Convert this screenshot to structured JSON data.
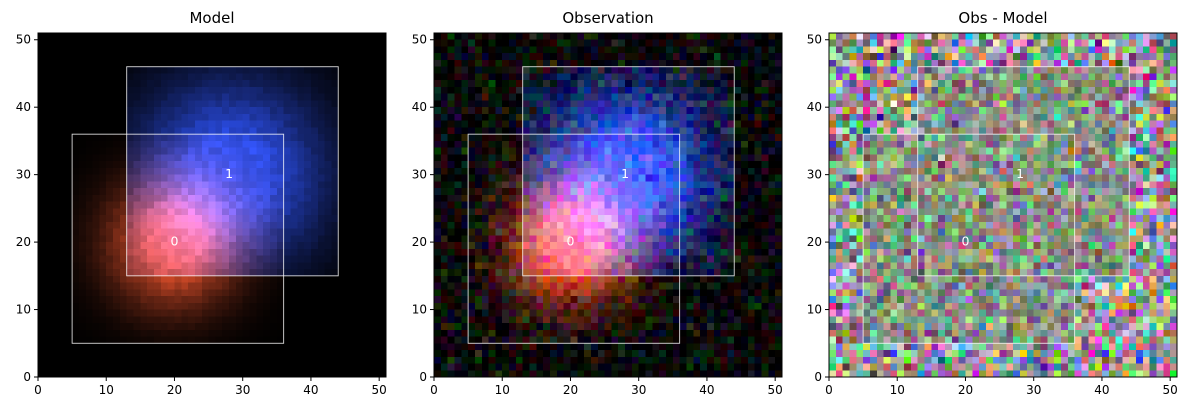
{
  "figure": {
    "background": "#ffffff",
    "box_color": "#ffffff"
  },
  "chart_data": [
    {
      "type": "heatmap",
      "title": "Model",
      "xlabel": "",
      "ylabel": "",
      "xlim": [
        0,
        51
      ],
      "ylim": [
        0,
        51
      ],
      "xticks": [
        0,
        10,
        20,
        30,
        40,
        50
      ],
      "yticks": [
        0,
        10,
        20,
        30,
        40,
        50
      ],
      "grid": false,
      "content": "model",
      "sources": [
        {
          "label": "0",
          "center": [
            20,
            20
          ],
          "box": {
            "x0": 5,
            "y0": 5,
            "x1": 36,
            "y1": 36
          },
          "color": "#ff5a30"
        },
        {
          "label": "1",
          "center": [
            28,
            30
          ],
          "box": {
            "x0": 13,
            "y0": 15,
            "x1": 44,
            "y1": 46
          },
          "color": "#2f55ff"
        }
      ]
    },
    {
      "type": "heatmap",
      "title": "Observation",
      "xlabel": "",
      "ylabel": "",
      "xlim": [
        0,
        51
      ],
      "ylim": [
        0,
        51
      ],
      "xticks": [
        0,
        10,
        20,
        30,
        40,
        50
      ],
      "yticks": [
        0,
        10,
        20,
        30,
        40,
        50
      ],
      "grid": false,
      "content": "observation",
      "sources": [
        {
          "label": "0",
          "center": [
            20,
            20
          ],
          "box": {
            "x0": 5,
            "y0": 5,
            "x1": 36,
            "y1": 36
          },
          "color": "#ff5a30"
        },
        {
          "label": "1",
          "center": [
            28,
            30
          ],
          "box": {
            "x0": 13,
            "y0": 15,
            "x1": 44,
            "y1": 46
          },
          "color": "#2f55ff"
        }
      ]
    },
    {
      "type": "heatmap",
      "title": "Obs - Model",
      "xlabel": "",
      "ylabel": "",
      "xlim": [
        0,
        51
      ],
      "ylim": [
        0,
        51
      ],
      "xticks": [
        0,
        10,
        20,
        30,
        40,
        50
      ],
      "yticks": [
        0,
        10,
        20,
        30,
        40,
        50
      ],
      "grid": false,
      "content": "residual",
      "sources": [
        {
          "label": "0",
          "center": [
            20,
            20
          ],
          "box": {
            "x0": 5,
            "y0": 5,
            "x1": 36,
            "y1": 36
          },
          "color": "#ff5a30"
        },
        {
          "label": "1",
          "center": [
            28,
            30
          ],
          "box": {
            "x0": 13,
            "y0": 15,
            "x1": 44,
            "y1": 46
          },
          "color": "#2f55ff"
        }
      ]
    }
  ]
}
